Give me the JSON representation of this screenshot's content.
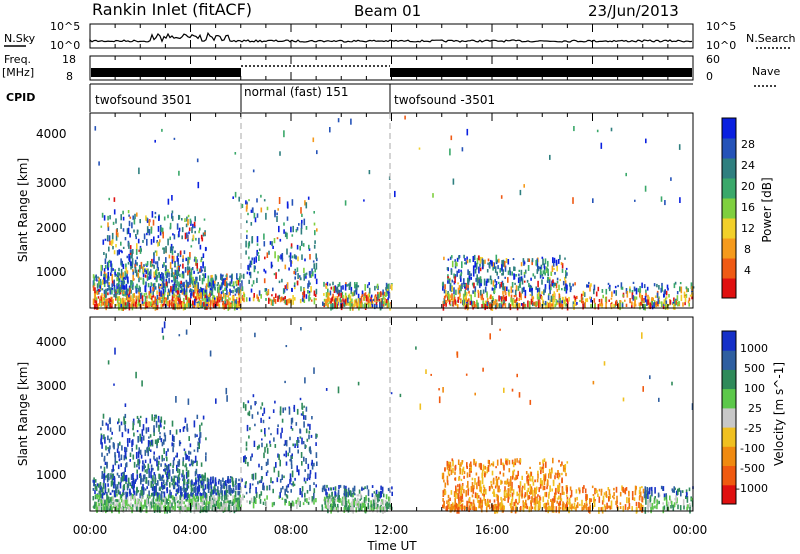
{
  "header": {
    "title": "Rankin Inlet (fitACF)",
    "beam": "Beam 01",
    "date": "23/Jun/2013"
  },
  "nsky": {
    "label": "N.Sky",
    "ticks_left": [
      "10^5",
      "10^0"
    ],
    "right_label": "N.Search",
    "ticks_right": [
      "10^5",
      "10^0"
    ]
  },
  "freq": {
    "label_line1": "Freq.",
    "label_line2": "[MHz]",
    "ticks_left": [
      "18",
      "8"
    ],
    "right_label": "Nave",
    "ticks_right": [
      "60",
      "0"
    ]
  },
  "cpid": {
    "label": "CPID",
    "segments": [
      {
        "label": "twofsound 3501",
        "start": 0,
        "end": 6
      },
      {
        "label": "normal (fast) 151",
        "start": 6,
        "end": 12
      },
      {
        "label": "twofsound -3501",
        "start": 12,
        "end": 24
      }
    ]
  },
  "xaxis": {
    "title": "Time UT",
    "ticks": [
      "00:00",
      "04:00",
      "08:00",
      "12:00",
      "16:00",
      "20:00",
      "00:00"
    ],
    "range_hours": [
      0,
      24
    ]
  },
  "power_panel": {
    "ylabel": "Slant Range [km]",
    "yticks": [
      "4000",
      "3000",
      "2000",
      "1000"
    ],
    "colorbar_label": "Power [dB]",
    "colorbar_ticks": [
      "28",
      "24",
      "20",
      "16",
      "12",
      "8",
      "4"
    ],
    "colors": [
      "#0a20e0",
      "#2553b8",
      "#2f7f7f",
      "#3aa86a",
      "#7fcf3f",
      "#f2d02a",
      "#f59a1c",
      "#ef5a14",
      "#e01010"
    ]
  },
  "velocity_panel": {
    "ylabel": "Slant Range [km]",
    "yticks": [
      "4000",
      "3000",
      "2000",
      "1000"
    ],
    "colorbar_label": "Velocity [m s^-1]",
    "colorbar_ticks": [
      "1000",
      "500",
      "100",
      "25",
      "-25",
      "-100",
      "-500",
      "-1000"
    ],
    "colors": [
      "#1530c8",
      "#2f5fa0",
      "#2f8a5a",
      "#5cc84a",
      "#c8c8c8",
      "#f0c020",
      "#f08a10",
      "#f05a10",
      "#e01010"
    ]
  },
  "chart_data": [
    {
      "type": "line",
      "title": "N.Sky / N.Search",
      "x_unit": "hours UT",
      "ylim": [
        0,
        5
      ],
      "note_scale": "log10"
    },
    {
      "type": "bar",
      "title": "Freq. [MHz] / Nave",
      "ylim": [
        8,
        18
      ]
    },
    {
      "type": "heatmap",
      "title": "Power [dB]",
      "ylabel": "Slant Range [km]",
      "ylim": [
        180,
        4500
      ],
      "xlim": [
        0,
        24
      ],
      "zlim": [
        0,
        32
      ]
    },
    {
      "type": "heatmap",
      "title": "Velocity [m s^-1]",
      "ylabel": "Slant Range [km]",
      "ylim": [
        180,
        4500
      ],
      "xlim": [
        0,
        24
      ],
      "zlim": [
        -1000,
        1000
      ]
    }
  ]
}
